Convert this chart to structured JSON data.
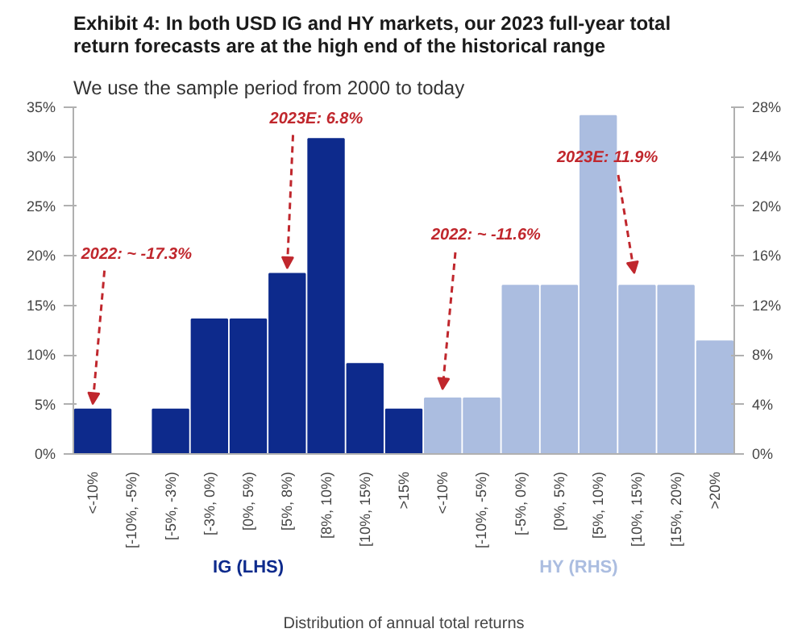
{
  "chart_data": {
    "type": "bar",
    "title": "Exhibit 4: In both USD IG and HY markets, our 2023 full-year total return forecasts are at the high end of the historical range",
    "subtitle": "We use the sample period from 2000 to today",
    "xlabel": "Distribution of annual total returns",
    "categories": [
      "<-10%",
      "[-10%, -5%)",
      "[-5%, -3%)",
      "[-3%, 0%)",
      "[0%, 5%)",
      "[5%, 8%)",
      "[8%, 10%)",
      "[10%, 15%)",
      ">15%",
      "<-10%",
      "[-10%, -5%)",
      "[-5%, 0%)",
      "[0%, 5%)",
      "[5%, 10%)",
      "[10%, 15%)",
      "[15%, 20%)",
      ">20%"
    ],
    "series": [
      {
        "name": "IG (LHS)",
        "color": "#0d2a8c",
        "values": [
          4.5,
          0,
          4.5,
          13.6,
          13.6,
          18.2,
          31.8,
          9.1,
          4.5,
          null,
          null,
          null,
          null,
          null,
          null,
          null,
          null
        ]
      },
      {
        "name": "HY (RHS)",
        "color": "#abbde0",
        "axis": "y2",
        "values": [
          null,
          null,
          null,
          null,
          null,
          null,
          null,
          null,
          null,
          4.5,
          4.5,
          13.6,
          13.6,
          27.3,
          13.6,
          13.6,
          9.1
        ]
      }
    ],
    "ylim": [
      0,
      35
    ],
    "yticks": [
      {
        "value": 0,
        "label": "0%"
      },
      {
        "value": 5,
        "label": "5%"
      },
      {
        "value": 10,
        "label": "10%"
      },
      {
        "value": 15,
        "label": "15%"
      },
      {
        "value": 20,
        "label": "20%"
      },
      {
        "value": 25,
        "label": "25%"
      },
      {
        "value": 30,
        "label": "30%"
      },
      {
        "value": 35,
        "label": "35%"
      }
    ],
    "y2lim": [
      0,
      28
    ],
    "y2ticks": [
      {
        "value": 0,
        "label": "0%"
      },
      {
        "value": 4,
        "label": "4%"
      },
      {
        "value": 8,
        "label": "8%"
      },
      {
        "value": 12,
        "label": "12%"
      },
      {
        "value": 16,
        "label": "16%"
      },
      {
        "value": 20,
        "label": "20%"
      },
      {
        "value": 24,
        "label": "24%"
      },
      {
        "value": 28,
        "label": "28%"
      }
    ],
    "annotations": [
      {
        "text": "2022: ~ -17.3%",
        "x": "<-10%",
        "y": 4.5
      },
      {
        "text": "2023E: 6.8%",
        "x": "[5%, 8%)",
        "y": 18.2
      },
      "2022: ~ -11.6%",
      "2023E: 11.9%"
    ],
    "grid": false
  }
}
